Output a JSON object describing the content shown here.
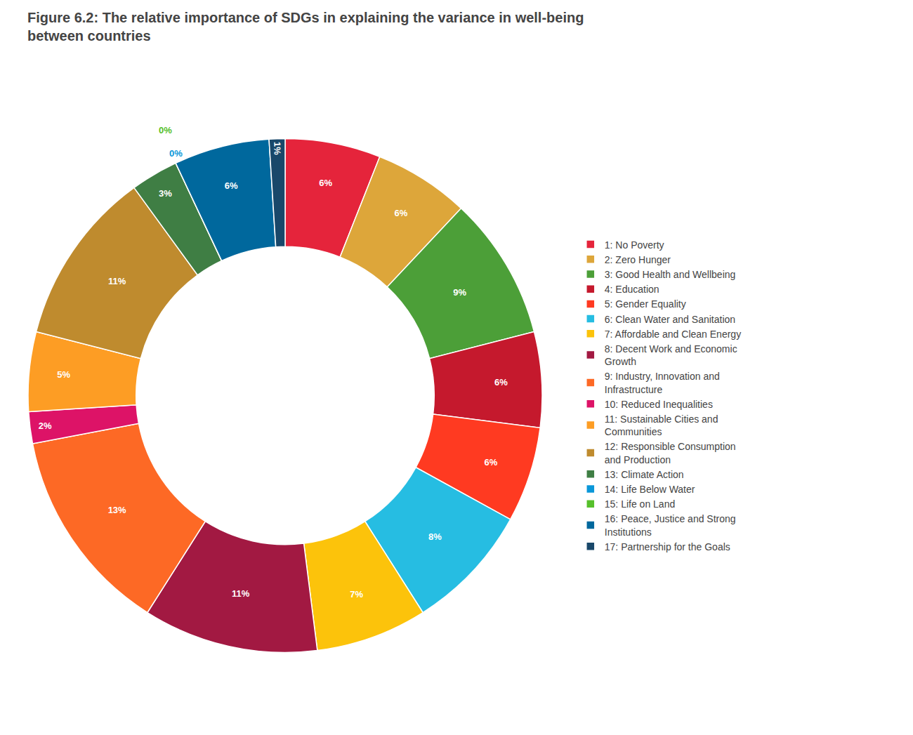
{
  "chart_data": {
    "type": "donut",
    "title": "Figure 6.2: The relative importance of SDGs in explaining the variance in well-being\nbetween countries",
    "categories": [
      "1: No Poverty",
      "2: Zero Hunger",
      "3: Good Health and Wellbeing",
      "4: Education",
      "5: Gender Equality",
      "6: Clean Water and Sanitation",
      "7: Affordable and Clean Energy",
      "8: Decent Work and Economic\nGrowth",
      "9: Industry, Innovation and\nInfrastructure",
      "10: Reduced Inequalities",
      "11: Sustainable Cities and\nCommunities",
      "12: Responsible Consumption\nand Production",
      "13: Climate Action",
      "14: Life Below Water",
      "15: Life on Land",
      "16: Peace, Justice and Strong\nInstitutions",
      "17: Partnership for the Goals"
    ],
    "values": [
      6,
      6,
      9,
      6,
      6,
      8,
      7,
      11,
      13,
      2,
      5,
      11,
      3,
      0,
      0,
      6,
      1
    ],
    "value_labels": [
      "6%",
      "6%",
      "9%",
      "6%",
      "6%",
      "8%",
      "7%",
      "11%",
      "13%",
      "2%",
      "5%",
      "11%",
      "3%",
      "0%",
      "0%",
      "6%",
      "1%"
    ],
    "colors": [
      "#e5243b",
      "#DDA63A",
      "#4c9f38",
      "#c5192d",
      "#ff3a21",
      "#26bde2",
      "#fcc30b",
      "#a21942",
      "#fd6925",
      "#dd1367",
      "#fd9d24",
      "#bf8b2e",
      "#3f7e44",
      "#0a97d9",
      "#56c02b",
      "#00689d",
      "#19486a"
    ],
    "data_labels": true,
    "legend": "right"
  }
}
